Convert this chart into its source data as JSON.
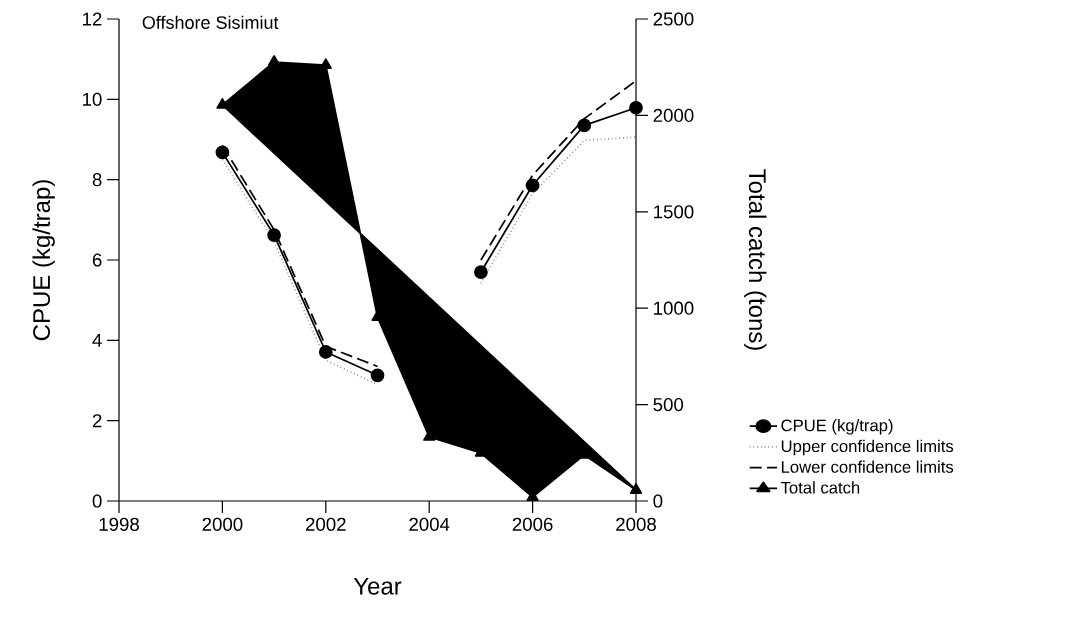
{
  "chart_data": {
    "type": "line",
    "title": "Offshore Sisimiut",
    "xlabel": "Year",
    "ylabel": "CPUE (kg/trap)",
    "y2label": "Total catch (tons)",
    "x": [
      2000,
      2001,
      2002,
      2003,
      2004,
      2005,
      2006,
      2007,
      2008
    ],
    "series": [
      {
        "name": "CPUE (kg/trap)",
        "color": "#000000",
        "marker": "circle",
        "line_style": "solid",
        "values": [
          8.68,
          6.62,
          3.71,
          3.13,
          null,
          5.7,
          7.86,
          9.35,
          9.79
        ]
      },
      {
        "name": "Upper confidence limits",
        "color": "#808080",
        "marker": "none",
        "line_style": "dotted",
        "values": [
          8.5,
          6.45,
          3.5,
          2.9,
          null,
          5.42,
          7.65,
          8.98,
          9.06
        ]
      },
      {
        "name": "Lower confidence limits",
        "color": "#000000",
        "marker": "none",
        "line_style": "dashed",
        "values": [
          8.85,
          6.75,
          3.85,
          3.35,
          null,
          6.0,
          8.11,
          9.52,
          10.46
        ]
      },
      {
        "name": "Total catch",
        "type": "area",
        "axis": "y2",
        "color": "#000000",
        "marker": "triangle",
        "line_style": "solid",
        "values": [
          2054,
          2277,
          2261,
          954,
          332,
          249,
          20,
          239,
          57
        ]
      }
    ],
    "xlim": [
      1998,
      2008
    ],
    "xticks": [
      1998,
      2000,
      2002,
      2004,
      2006,
      2008
    ],
    "ylim": [
      0,
      12
    ],
    "yticks": [
      0,
      2,
      4,
      6,
      8,
      10,
      12
    ],
    "y2lim": [
      0,
      2500
    ],
    "y2ticks": [
      0,
      500,
      1000,
      1500,
      2000,
      2500
    ],
    "legend": "right"
  }
}
